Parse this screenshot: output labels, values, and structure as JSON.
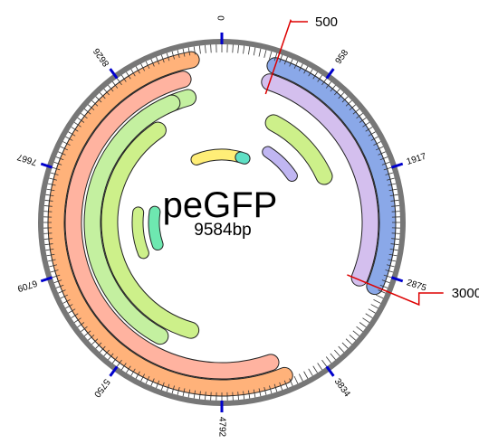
{
  "plasmid": {
    "name": "peGFP",
    "size_label": "9584bp",
    "length": 9584
  },
  "ruler": {
    "ring_color": "#777777",
    "major_tick_color": "#0000cc",
    "major_ticks": [
      {
        "pos": 0,
        "label": "0"
      },
      {
        "pos": 958,
        "label": "958"
      },
      {
        "pos": 1917,
        "label": "1917"
      },
      {
        "pos": 2875,
        "label": "2875"
      },
      {
        "pos": 3834,
        "label": "3834"
      },
      {
        "pos": 4792,
        "label": "4792"
      },
      {
        "pos": 5750,
        "label": "5750"
      },
      {
        "pos": 6709,
        "label": "6709"
      },
      {
        "pos": 7667,
        "label": "7667"
      },
      {
        "pos": 8626,
        "label": "8626"
      }
    ]
  },
  "callouts": [
    {
      "pos": 500,
      "label": "500",
      "color": "#dd0000"
    },
    {
      "pos": 3000,
      "label": "3000",
      "color": "#dd0000"
    }
  ],
  "features": [
    {
      "track": 1,
      "start": 500,
      "end": 3000,
      "color": "#8aa8e8"
    },
    {
      "track": 1,
      "start": 4200,
      "end": 9300,
      "color": "#ffb27a"
    },
    {
      "track": 2,
      "start": 500,
      "end": 2980,
      "color": "#d4bfee"
    },
    {
      "track": 2,
      "start": 4280,
      "end": 9180,
      "color": "#ffb3a0"
    },
    {
      "track": 3,
      "start": 8980,
      "end": 9180,
      "color": "#c4f0a0"
    },
    {
      "track": 3,
      "start": 5550,
      "end": 8980,
      "color": "#c4f0a0"
    },
    {
      "track": 4,
      "start": 730,
      "end": 1750,
      "color": "#cdf08a"
    },
    {
      "track": 4,
      "start": 5220,
      "end": 8660,
      "color": "#cdf08a"
    },
    {
      "track": 5,
      "start": 880,
      "end": 1500,
      "color": "#c0b6f2"
    },
    {
      "track": 5,
      "start": 6620,
      "end": 7370,
      "color": "#cdf08a"
    },
    {
      "track": 6,
      "start": 9000,
      "end": 400,
      "color": "#ffee77"
    },
    {
      "track": 6,
      "start": 430,
      "end": 520,
      "color": "#5fe0c5"
    },
    {
      "track": 6,
      "start": 6680,
      "end": 7430,
      "color": "#6ee8b0"
    }
  ]
}
